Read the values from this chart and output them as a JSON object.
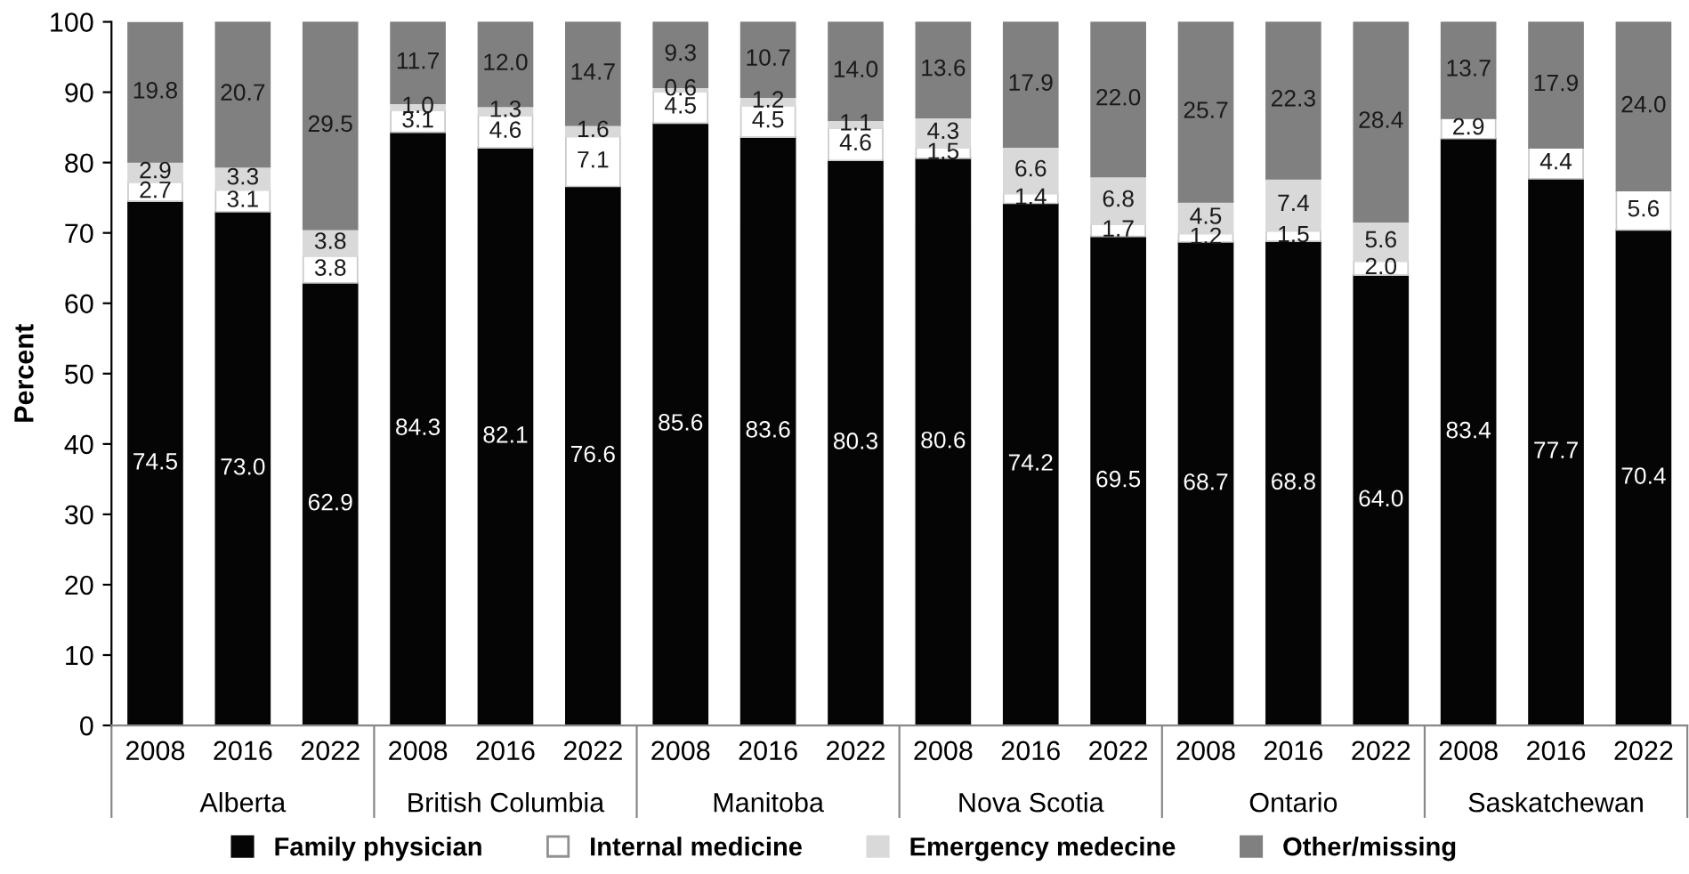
{
  "chart_data": {
    "type": "bar",
    "stacked": true,
    "ylabel": "Percent",
    "ylim": [
      0,
      100
    ],
    "yticks": [
      0,
      10,
      20,
      30,
      40,
      50,
      60,
      70,
      80,
      90,
      100
    ],
    "grid": false,
    "legend": "bottom",
    "categories": [
      "2008",
      "2016",
      "2022",
      "2008",
      "2016",
      "2022",
      "2008",
      "2016",
      "2022",
      "2008",
      "2016",
      "2022",
      "2008",
      "2016",
      "2022",
      "2008",
      "2016",
      "2022"
    ],
    "annotations": [
      "Alberta",
      "British Columbia",
      "Manitoba",
      "Nova Scotia",
      "Ontario",
      "Saskatchewan"
    ],
    "series": [
      {
        "name": "Family physician",
        "color": "#050505",
        "values": [
          74.5,
          73.0,
          62.9,
          84.3,
          82.1,
          76.6,
          85.6,
          83.6,
          80.3,
          80.6,
          74.2,
          69.5,
          68.7,
          68.8,
          64.0,
          83.4,
          77.7,
          70.4
        ],
        "value_labels": [
          "74.5",
          "73.0",
          "62.9",
          "84.3",
          "82.1",
          "76.6",
          "85.6",
          "83.6",
          "80.3",
          "80.6",
          "74.2",
          "69.5",
          "68.7",
          "68.8",
          "64.0",
          "83.4",
          "77.7",
          "70.4"
        ]
      },
      {
        "name": "Internal medicine",
        "color": "#ffffff",
        "values": [
          2.7,
          3.1,
          3.8,
          3.1,
          4.6,
          7.1,
          4.5,
          4.5,
          4.6,
          1.5,
          1.4,
          1.7,
          1.2,
          1.5,
          2.0,
          2.9,
          4.4,
          5.6
        ],
        "value_labels": [
          "2.7",
          "3.1",
          "3.8",
          "3.1",
          "4.6",
          "7.1",
          "4.5",
          "4.5",
          "4.6",
          "1.5",
          "1.4",
          "1.7",
          "1.2",
          "1.5",
          "2.0",
          "2.9",
          "4.4",
          "5.6"
        ]
      },
      {
        "name": "Emergency medecine",
        "color": "#d9d9d9",
        "values": [
          2.9,
          3.3,
          3.8,
          1.0,
          1.3,
          1.6,
          0.6,
          1.2,
          1.1,
          4.3,
          6.6,
          6.8,
          4.5,
          7.4,
          5.6,
          null,
          null,
          null
        ],
        "value_labels": [
          "2.9",
          "3.3",
          "3.8",
          "1.0",
          "1.3",
          "1.6",
          "0.6",
          "1.2",
          "1.1",
          "4.3",
          "6.6",
          "6.8",
          "4.5",
          "7.4",
          "5.6",
          null,
          null,
          null
        ]
      },
      {
        "name": "Other/missing",
        "color": "#808080",
        "values": [
          19.8,
          20.7,
          29.5,
          11.7,
          12.0,
          14.7,
          9.3,
          10.7,
          14.0,
          13.6,
          17.9,
          22.0,
          25.7,
          22.3,
          28.4,
          13.7,
          17.9,
          24.0
        ],
        "value_labels": [
          "19.8",
          "20.7",
          "29.5",
          "11.7",
          "12.0",
          "14.7",
          "9.3",
          "10.7",
          "14.0",
          "13.6",
          "17.9",
          "22.0",
          "25.7",
          "22.3",
          "28.4",
          "13.7",
          "17.9",
          "24.0"
        ]
      }
    ]
  }
}
